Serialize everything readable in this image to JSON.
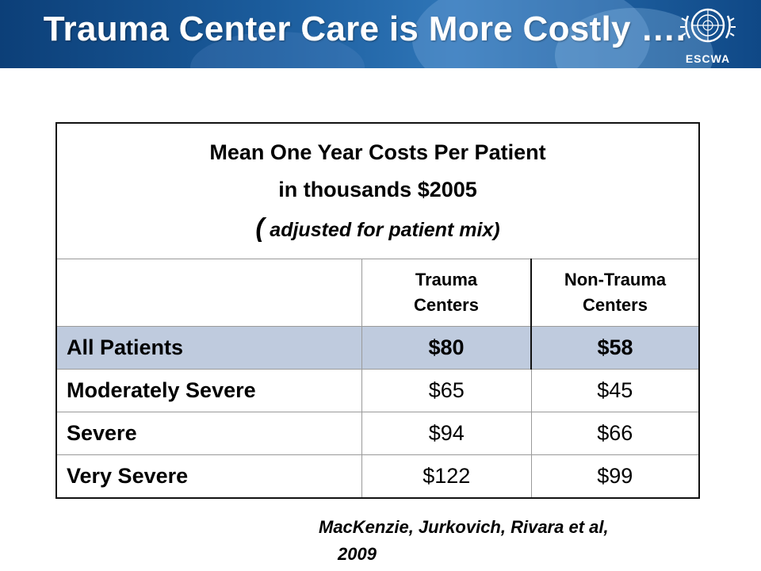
{
  "slide": {
    "title": "Trauma Center Care is More Costly ….",
    "logo": {
      "name": "un-emblem",
      "label": "ESCWA"
    }
  },
  "table": {
    "header_line1": "Mean One Year Costs Per Patient",
    "header_line2": "in thousands $2005",
    "header_line3_open": "(",
    "header_line3_text": " adjusted for patient mix)",
    "col_trauma_line1": "Trauma",
    "col_trauma_line2": "Centers",
    "col_non_line1": "Non-Trauma",
    "col_non_line2": "Centers",
    "rows": [
      {
        "label": "All Patients",
        "trauma": "$80",
        "non_trauma": "$58"
      },
      {
        "label": "Moderately Severe",
        "trauma": "$65",
        "non_trauma": "$45"
      },
      {
        "label": "Severe",
        "trauma": "$94",
        "non_trauma": "$66"
      },
      {
        "label": "Very Severe",
        "trauma": "$122",
        "non_trauma": "$99"
      }
    ],
    "highlight_color": "#bfcbde"
  },
  "citation": {
    "line1": "MacKenzie, Jurkovich, Rivara  et al,",
    "line2": "2009"
  }
}
